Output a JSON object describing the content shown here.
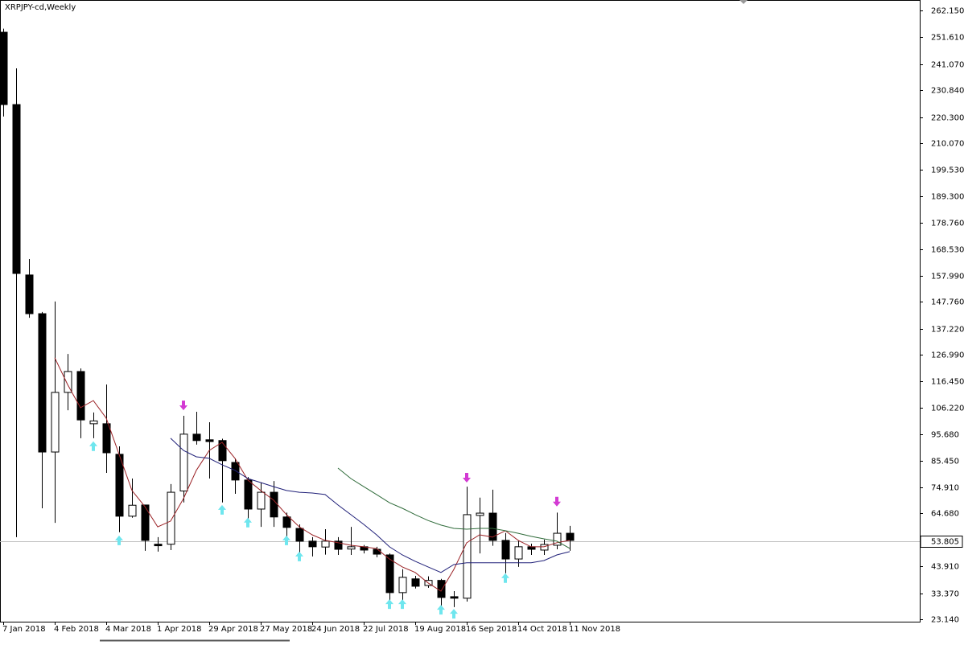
{
  "chart_data": {
    "type": "candlestick",
    "title": "XRPJPY-cd,Weekly",
    "categories": [
      "7 Jan 2018",
      null,
      null,
      null,
      "4 Feb 2018",
      null,
      null,
      null,
      "4 Mar 2018",
      null,
      null,
      null,
      "1 Apr 2018",
      null,
      null,
      null,
      "29 Apr 2018",
      null,
      null,
      null,
      "27 May 2018",
      null,
      null,
      null,
      "24 Jun 2018",
      null,
      null,
      null,
      "22 Jul 2018",
      null,
      null,
      null,
      "19 Aug 2018",
      null,
      null,
      null,
      "16 Sep 2018",
      null,
      null,
      null,
      "14 Oct 2018",
      null,
      null,
      null,
      "11 Nov 2018"
    ],
    "open": [
      253.6,
      225.2,
      158.3,
      143.1,
      88.8,
      112.2,
      120.4,
      99.9,
      99.9,
      87.9,
      63.6,
      68.0,
      52.6,
      52.6,
      73.5,
      95.8,
      93.6,
      93.3,
      84.7,
      77.8,
      66.4,
      73.0,
      63.3,
      58.8,
      53.8,
      51.5,
      53.8,
      50.7,
      51.6,
      50.6,
      48.4,
      33.6,
      39.0,
      36.4,
      38.4,
      32.0,
      31.4,
      63.9,
      64.8,
      54.1,
      46.8,
      51.6,
      50.3,
      52.2,
      56.9
    ],
    "high": [
      255.0,
      239.4,
      164.6,
      143.8,
      147.9,
      127.3,
      121.6,
      104.3,
      115.3,
      91.0,
      78.4,
      68.0,
      55.4,
      76.2,
      103.0,
      104.6,
      100.5,
      94.0,
      86.3,
      79.0,
      76.8,
      77.4,
      65.0,
      60.4,
      55.4,
      58.5,
      55.4,
      59.4,
      52.3,
      51.6,
      49.0,
      42.8,
      40.2,
      40.0,
      39.0,
      34.2,
      75.2,
      70.9,
      74.0,
      57.0,
      54.1,
      52.8,
      54.4,
      65.0,
      59.8
    ],
    "low": [
      220.5,
      55.4,
      141.5,
      66.7,
      61.0,
      105.2,
      94.2,
      94.2,
      80.6,
      57.3,
      63.0,
      50.0,
      49.7,
      50.3,
      69.0,
      91.7,
      78.4,
      69.0,
      72.4,
      62.0,
      59.4,
      59.4,
      55.4,
      48.4,
      47.8,
      48.5,
      48.4,
      48.4,
      49.0,
      47.5,
      29.5,
      27.9,
      35.2,
      35.5,
      27.9,
      27.9,
      30.1,
      49.0,
      52.0,
      41.2,
      43.7,
      48.4,
      48.4,
      50.6,
      50.0
    ],
    "close": [
      225.2,
      158.9,
      143.1,
      88.8,
      112.2,
      120.4,
      101.4,
      101.0,
      88.5,
      63.6,
      67.9,
      54.1,
      52.0,
      73.0,
      95.8,
      93.3,
      92.9,
      85.4,
      77.8,
      66.4,
      73.0,
      63.3,
      59.2,
      53.8,
      51.6,
      53.8,
      50.6,
      51.6,
      50.3,
      48.7,
      33.6,
      39.6,
      36.1,
      38.4,
      31.7,
      31.4,
      64.2,
      64.8,
      54.1,
      46.8,
      51.6,
      50.6,
      52.5,
      56.9,
      54.1
    ],
    "up_color": "#ffffff",
    "down_color": "#000000",
    "overlays": [
      {
        "color": "#9b2226",
        "values": [
          null,
          null,
          null,
          null,
          125.8,
          115.3,
          106.2,
          109.0,
          102.1,
          87.9,
          73.7,
          67.4,
          59.4,
          61.7,
          70.5,
          81.6,
          89.4,
          92.6,
          86.3,
          77.8,
          73.7,
          69.9,
          64.2,
          59.4,
          56.3,
          54.1,
          53.2,
          52.2,
          51.6,
          50.9,
          46.8,
          43.7,
          41.5,
          37.4,
          34.2,
          42.7,
          53.2,
          56.3,
          55.4,
          57.9,
          54.1,
          51.6,
          51.6,
          53.2,
          54.1
        ]
      },
      {
        "color": "#1f1f78",
        "values": [
          null,
          null,
          null,
          null,
          null,
          null,
          null,
          null,
          null,
          null,
          null,
          null,
          null,
          94.2,
          89.4,
          86.9,
          86.3,
          83.8,
          81.6,
          78.4,
          76.8,
          75.2,
          73.7,
          73.0,
          72.7,
          72.1,
          68.0,
          64.2,
          60.4,
          56.3,
          51.6,
          48.4,
          45.9,
          43.7,
          41.5,
          44.6,
          45.3,
          45.3,
          45.3,
          45.3,
          45.3,
          45.3,
          46.2,
          48.4,
          49.7
        ]
      },
      {
        "color": "#2f6b3a",
        "values": [
          null,
          null,
          null,
          null,
          null,
          null,
          null,
          null,
          null,
          null,
          null,
          null,
          null,
          null,
          null,
          null,
          null,
          null,
          null,
          null,
          null,
          null,
          null,
          null,
          null,
          null,
          82.5,
          78.4,
          75.2,
          72.1,
          68.9,
          66.7,
          64.2,
          61.9,
          60.1,
          58.8,
          58.5,
          58.8,
          58.8,
          57.9,
          56.9,
          55.7,
          54.7,
          53.8,
          51.0
        ]
      }
    ],
    "up_arrows": {
      "color": "#6fe6ee",
      "values": [
        null,
        null,
        null,
        null,
        null,
        null,
        null,
        93.0,
        null,
        56.0,
        null,
        null,
        null,
        null,
        null,
        null,
        null,
        68.0,
        null,
        63.0,
        null,
        null,
        56.0,
        49.7,
        null,
        null,
        null,
        null,
        null,
        null,
        31.0,
        31.0,
        null,
        null,
        28.8,
        27.2,
        null,
        null,
        null,
        41.2,
        null,
        null,
        null,
        null,
        null
      ]
    },
    "down_arrows": {
      "color": "#d33ad3",
      "values": [
        null,
        null,
        null,
        null,
        null,
        null,
        null,
        null,
        null,
        null,
        null,
        null,
        null,
        null,
        105.2,
        null,
        null,
        null,
        null,
        null,
        null,
        null,
        null,
        null,
        null,
        null,
        null,
        null,
        null,
        null,
        null,
        null,
        null,
        null,
        null,
        null,
        76.8,
        null,
        null,
        null,
        null,
        null,
        null,
        67.4,
        null
      ]
    },
    "last_price": 53.805,
    "ylim": [
      22.19,
      266.25
    ],
    "yticks": [
      {
        "value": 262.15,
        "label": "262.150"
      },
      {
        "value": 251.61,
        "label": "251.610"
      },
      {
        "value": 241.07,
        "label": "241.070"
      },
      {
        "value": 230.84,
        "label": "230.840"
      },
      {
        "value": 220.3,
        "label": "220.300"
      },
      {
        "value": 210.07,
        "label": "210.070"
      },
      {
        "value": 199.53,
        "label": "199.530"
      },
      {
        "value": 189.3,
        "label": "189.300"
      },
      {
        "value": 178.76,
        "label": "178.760"
      },
      {
        "value": 168.53,
        "label": "168.530"
      },
      {
        "value": 157.99,
        "label": "157.990"
      },
      {
        "value": 147.76,
        "label": "147.760"
      },
      {
        "value": 137.22,
        "label": "137.220"
      },
      {
        "value": 126.99,
        "label": "126.990"
      },
      {
        "value": 116.45,
        "label": "116.450"
      },
      {
        "value": 106.22,
        "label": "106.220"
      },
      {
        "value": 95.68,
        "label": "95.680"
      },
      {
        "value": 85.45,
        "label": "85.450"
      },
      {
        "value": 74.91,
        "label": "74.910"
      },
      {
        "value": 64.68,
        "label": "64.680"
      },
      {
        "value": 43.91,
        "label": "43.910"
      },
      {
        "value": 33.37,
        "label": "33.370"
      },
      {
        "value": 23.14,
        "label": "23.140"
      }
    ]
  }
}
